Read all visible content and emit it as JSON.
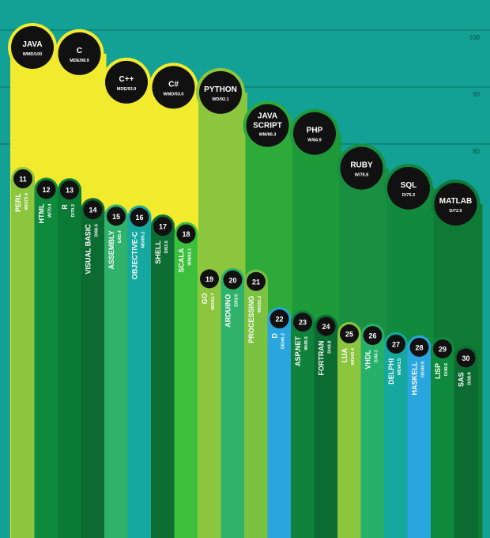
{
  "chart_data": {
    "type": "bar",
    "ylim": [
      70,
      100
    ],
    "yticks": [
      {
        "value": 100,
        "label": "100"
      },
      {
        "value": 90,
        "label": "90"
      },
      {
        "value": 80,
        "label": "80"
      }
    ],
    "grid": true,
    "series": [
      {
        "rank": "",
        "name": "JAVA",
        "name2": "",
        "code": "WMD/100",
        "value": 100,
        "color": "#f2eb2d"
      },
      {
        "rank": "",
        "name": "C",
        "name2": "",
        "code": "MDE/98.9",
        "value": 98.9,
        "color": "#f2eb2d"
      },
      {
        "rank": "",
        "name": "C++",
        "name2": "",
        "code": "MDE/93.9",
        "value": 93.9,
        "color": "#f2eb2d"
      },
      {
        "rank": "",
        "name": "C#",
        "name2": "",
        "code": "WMD/93.0",
        "value": 93.0,
        "color": "#f2eb2d"
      },
      {
        "rank": "",
        "name": "PYTHON",
        "name2": "",
        "code": "WD/92.1",
        "value": 92.1,
        "color": "#8cc63f"
      },
      {
        "rank": "",
        "name": "JAVA",
        "name2": "SCRIPT",
        "code": "WM/86.3",
        "value": 86.3,
        "color": "#2eaa3a"
      },
      {
        "rank": "",
        "name": "PHP",
        "name2": "",
        "code": "W/84.9",
        "value": 84.9,
        "color": "#1e9a3a"
      },
      {
        "rank": "",
        "name": "RUBY",
        "name2": "",
        "code": "W/78.8",
        "value": 78.8,
        "color": "#1a8f41"
      },
      {
        "rank": "",
        "name": "SQL",
        "name2": "",
        "code": "D/75.3",
        "value": 75.3,
        "color": "#128a3e"
      },
      {
        "rank": "",
        "name": "MATLAB",
        "name2": "",
        "code": "D/72.5",
        "value": 72.5,
        "color": "#0f7a36"
      },
      {
        "rank": "11",
        "name": "PERL",
        "code": "WD/72.4",
        "value": 72.4,
        "color": "#8cc63f"
      },
      {
        "rank": "12",
        "name": "HTML",
        "code": "W/70.4",
        "value": 70.4,
        "color": "#0f8a3c"
      },
      {
        "rank": "13",
        "name": "R",
        "code": "D/70.3",
        "value": 70.3,
        "color": "#0b7a35"
      },
      {
        "rank": "14",
        "name": "VISUAL BASIC",
        "code": "D/66.6",
        "value": 66.6,
        "color": "#0c6b31"
      },
      {
        "rank": "15",
        "name": "ASSEMBLY",
        "code": "E/65.4",
        "value": 65.4,
        "color": "#30b26a"
      },
      {
        "rank": "16",
        "name": "OBJECTIVE-C",
        "code": "MD/65.2",
        "value": 65.2,
        "color": "#15a8a0"
      },
      {
        "rank": "17",
        "name": "SHELL",
        "code": "D/63.5",
        "value": 63.5,
        "color": "#0d6d33"
      },
      {
        "rank": "18",
        "name": "SCALA",
        "code": "WM/62.1",
        "value": 62.1,
        "color": "#3cbf3c"
      },
      {
        "rank": "19",
        "name": "GO",
        "code": "WD/53.7",
        "value": 53.7,
        "color": "#8cc63f"
      },
      {
        "rank": "20",
        "name": "ARDUINO",
        "code": "E/53.5",
        "value": 53.5,
        "color": "#30b26a"
      },
      {
        "rank": "21",
        "name": "PROCESSING",
        "code": "WD/53.2",
        "value": 53.2,
        "color": "#7cc242"
      },
      {
        "rank": "22",
        "name": "D",
        "code": "DE/46.2",
        "value": 46.2,
        "color": "#29a6de"
      },
      {
        "rank": "23",
        "name": "ASP.NET",
        "code": "W/45.6",
        "value": 45.6,
        "color": "#10823c"
      },
      {
        "rank": "24",
        "name": "FORTRAN",
        "code": "D/44.8",
        "value": 44.8,
        "color": "#0c6b31"
      },
      {
        "rank": "25",
        "name": "LUA",
        "code": "WD/43.4",
        "value": 43.4,
        "color": "#8cc63f"
      },
      {
        "rank": "26",
        "name": "VHDL",
        "code": "E/43.1",
        "value": 43.1,
        "color": "#26b06a"
      },
      {
        "rank": "27",
        "name": "DELPHI",
        "code": "WD/41.5",
        "value": 41.5,
        "color": "#16a79e"
      },
      {
        "rank": "28",
        "name": "HASKELL",
        "code": "DE/40.9",
        "value": 40.9,
        "color": "#29a6de"
      },
      {
        "rank": "29",
        "name": "LISP",
        "code": "D/40.6",
        "value": 40.6,
        "color": "#0f8a3c"
      },
      {
        "rank": "30",
        "name": "SAS",
        "code": "D/38.9",
        "value": 38.9,
        "color": "#0c6b31"
      }
    ]
  }
}
